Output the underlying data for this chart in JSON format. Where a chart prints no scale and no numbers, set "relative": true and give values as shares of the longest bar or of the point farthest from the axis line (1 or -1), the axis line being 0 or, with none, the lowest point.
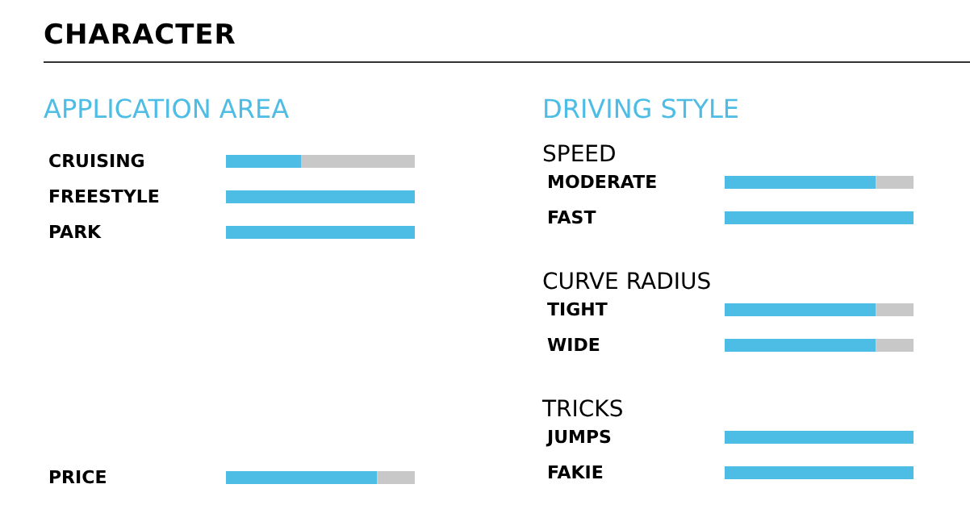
{
  "chart_data": [
    {
      "type": "bar",
      "orientation": "horizontal",
      "relative": true,
      "stacked": true,
      "title": "CHARACTER",
      "subtitle": "APPLICATION AREA",
      "categories": [
        "CRUISING",
        "FREESTYLE",
        "PARK"
      ],
      "series": [
        {
          "color": "#4dbde6",
          "values": [
            0.4,
            1,
            1
          ]
        },
        {
          "color": "#c8c8c8",
          "values": [
            0.6,
            0,
            0
          ]
        }
      ]
    },
    {
      "type": "bar",
      "orientation": "horizontal",
      "relative": true,
      "stacked": true,
      "categories": [
        "PRICE"
      ],
      "series": [
        {
          "color": "#4dbde6",
          "values": [
            0.8
          ]
        },
        {
          "color": "#c8c8c8",
          "values": [
            0.2
          ]
        }
      ]
    },
    {
      "type": "bar",
      "orientation": "horizontal",
      "relative": true,
      "stacked": true,
      "title": "DRIVING STYLE",
      "subtitle": "SPEED",
      "categories": [
        "MODERATE",
        "FAST"
      ],
      "series": [
        {
          "color": "#4dbde6",
          "values": [
            0.8,
            1
          ]
        },
        {
          "color": "#c8c8c8",
          "values": [
            0.2,
            0
          ]
        }
      ]
    },
    {
      "type": "bar",
      "orientation": "horizontal",
      "relative": true,
      "stacked": true,
      "subtitle": "CURVE RADIUS",
      "categories": [
        "TIGHT",
        "WIDE"
      ],
      "series": [
        {
          "color": "#4dbde6",
          "values": [
            0.8,
            0.8
          ]
        },
        {
          "color": "#c8c8c8",
          "values": [
            0.2,
            0.2
          ]
        }
      ]
    },
    {
      "type": "bar",
      "orientation": "horizontal",
      "relative": true,
      "stacked": true,
      "subtitle": "TRICKS",
      "categories": [
        "JUMPS",
        "FAKIE"
      ],
      "series": [
        {
          "color": "#4dbde6",
          "values": [
            1,
            1
          ]
        },
        {
          "color": "#c8c8c8",
          "values": [
            0,
            0
          ]
        }
      ]
    }
  ]
}
